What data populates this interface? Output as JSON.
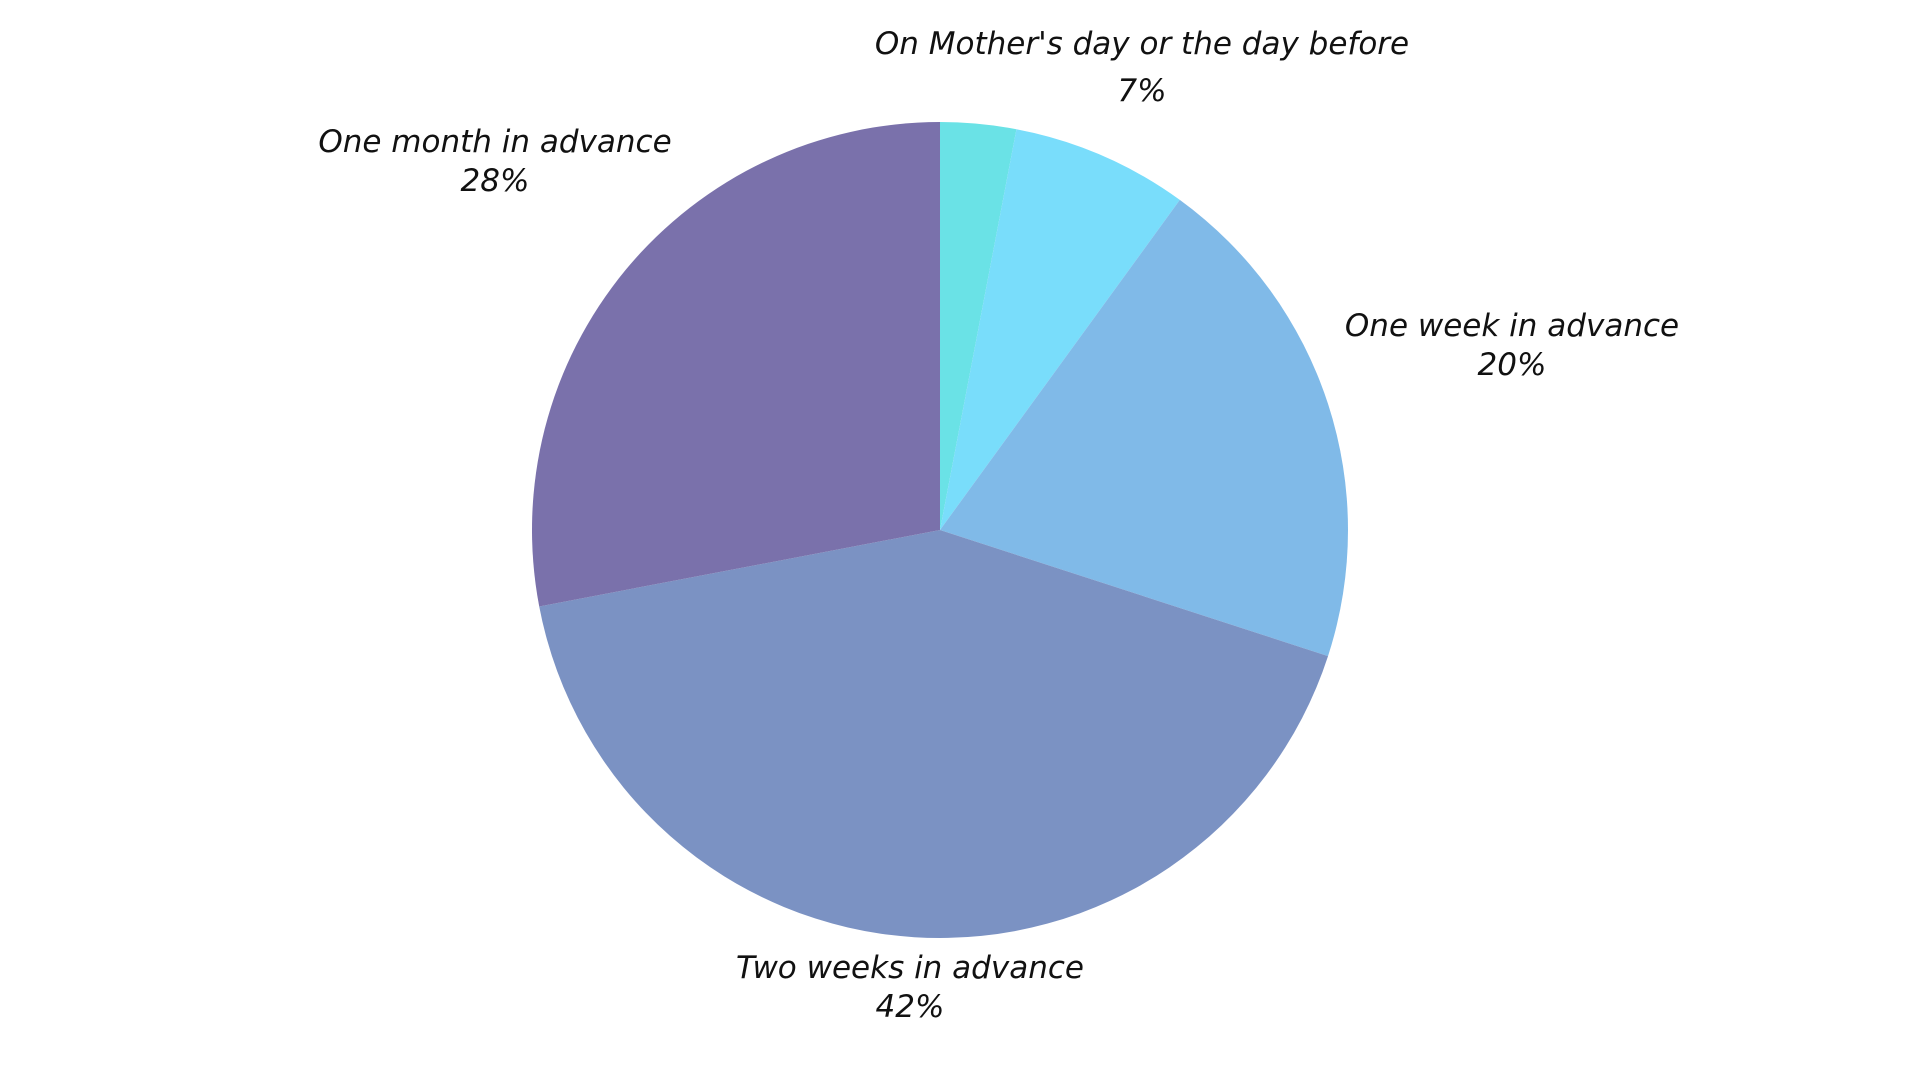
{
  "chart_data": {
    "type": "pie",
    "title": "",
    "slices": [
      {
        "label": "",
        "value": 3,
        "percent_label": "",
        "color": "#6ae2e6"
      },
      {
        "label": "On Mother's day or the day before",
        "value": 7,
        "percent_label": "7%",
        "color": "#79ddfb"
      },
      {
        "label": "One week in advance",
        "value": 20,
        "percent_label": "20%",
        "color": "#80bae8"
      },
      {
        "label": "Two weeks in advance",
        "value": 42,
        "percent_label": "42%",
        "color": "#7b92c3"
      },
      {
        "label": "One month in advance",
        "value": 28,
        "percent_label": "28%",
        "color": "#7a71ab"
      }
    ],
    "start_angle_deg": 0,
    "direction": "clockwise",
    "legend": "none",
    "labels": "outside"
  }
}
